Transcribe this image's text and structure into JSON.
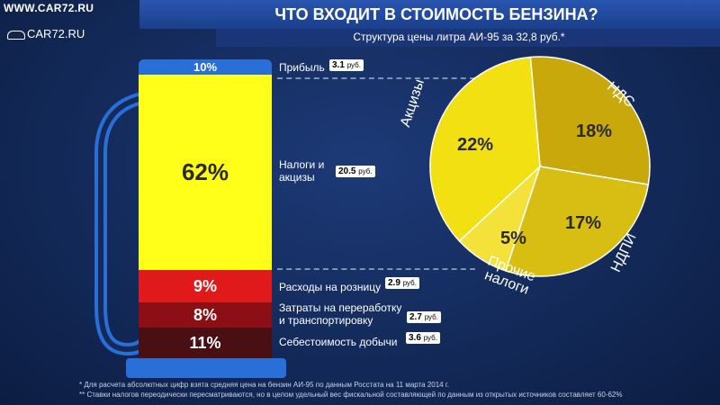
{
  "watermark": {
    "site": "WWW.CAR72.RU",
    "logo": "CAR72.RU"
  },
  "header": {
    "title": "ЧТО ВХОДИТ В СТОИМОСТЬ БЕНЗИНА?",
    "subtitle": "Структура цены литра АИ-95 за 32,8 руб.*"
  },
  "pump": {
    "segments": [
      {
        "pct": "10%",
        "label": "Прибыль",
        "value": "3.1",
        "unit": "руб.",
        "color": "#2a6fd8"
      },
      {
        "pct": "62%",
        "label": "Налоги и акцизы",
        "value": "20.5",
        "unit": "руб.",
        "color": "#ffff1a"
      },
      {
        "pct": "9%",
        "label": "Расходы на розницу",
        "value": "2.9",
        "unit": "руб.",
        "color": "#e01a1a"
      },
      {
        "pct": "8%",
        "label": "Затраты на переработку и транспортировку",
        "value": "2.7",
        "unit": "руб.",
        "color": "#8b0f14"
      },
      {
        "pct": "11%",
        "label": "Себестоимость добычи",
        "value": "3.6",
        "unit": "руб.",
        "color": "#4a0f12"
      }
    ]
  },
  "pie": {
    "slices": [
      {
        "name": "Акцизы",
        "pct": "22%",
        "color": "#f2e012"
      },
      {
        "name": "НДС",
        "pct": "18%",
        "color": "#c8a80a"
      },
      {
        "name": "НДПИ",
        "pct": "17%",
        "color": "#d8bd12"
      },
      {
        "name": "Прочие налоги",
        "pct": "5%",
        "color": "#f4e23a"
      }
    ]
  },
  "chart_data": {
    "type": "bar",
    "title": "ЧТО ВХОДИТ В СТОИМОСТЬ БЕНЗИНА?",
    "subtitle": "Структура цены литра АИ-95 за 32,8 руб.*",
    "categories": [
      "Прибыль",
      "Налоги и акцизы",
      "Расходы на розницу",
      "Затраты на переработку и транспортировку",
      "Себестоимость добычи"
    ],
    "values_percent": [
      10,
      62,
      9,
      8,
      11
    ],
    "values_rub": [
      3.1,
      20.5,
      2.9,
      2.7,
      3.6
    ],
    "pie": {
      "type": "pie",
      "categories": [
        "Акцизы",
        "НДС",
        "НДПИ",
        "Прочие налоги"
      ],
      "values_percent": [
        22,
        18,
        17,
        5
      ]
    }
  },
  "footnotes": [
    "* Для расчета абсолютных цифр взята средняя цена на бензин АИ-95 по данным Росстата на 11 марта 2014 г.",
    "** Ставки налогов переодически пересматриваются, но в целом удельный вес фискальной составляющей по данным из открытых источников составляет 60-62%"
  ]
}
